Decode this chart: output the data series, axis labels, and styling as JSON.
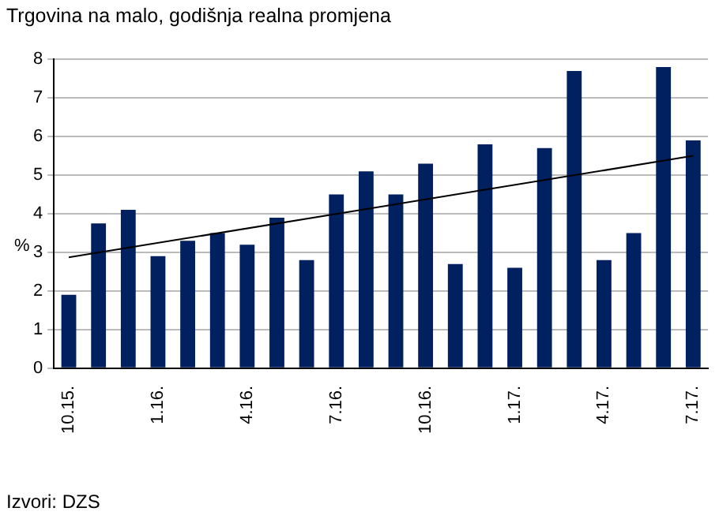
{
  "chart_data": {
    "type": "bar",
    "title": "Trgovina na malo, godišnja realna promjena",
    "ylabel": "%",
    "annotations": [
      "Izvori: DZS"
    ],
    "categories": [
      "10.15.",
      null,
      null,
      "1.16.",
      null,
      null,
      "4.16.",
      null,
      null,
      "7.16.",
      null,
      null,
      "10.16.",
      null,
      null,
      "1.17.",
      null,
      null,
      "4.17.",
      null,
      null,
      "7.17."
    ],
    "series": [
      {
        "color": "#002060",
        "values": [
          1.9,
          3.75,
          4.1,
          2.9,
          3.3,
          3.5,
          3.2,
          3.9,
          2.8,
          4.5,
          5.1,
          4.5,
          5.3,
          2.7,
          5.8,
          2.6,
          5.7,
          7.7,
          2.8,
          3.5,
          7.8,
          5.9
        ]
      },
      {
        "type": "line",
        "color": "#000000",
        "line_style": "solid",
        "marker": "none",
        "values": [
          2.87,
          null,
          null,
          null,
          null,
          null,
          null,
          null,
          null,
          null,
          null,
          null,
          null,
          null,
          null,
          null,
          null,
          null,
          null,
          null,
          null,
          5.5
        ]
      }
    ],
    "ylim": [
      0,
      8
    ],
    "yticks": [
      0,
      1,
      2,
      3,
      4,
      5,
      6,
      7,
      8
    ],
    "grid": "y",
    "legend": false
  }
}
